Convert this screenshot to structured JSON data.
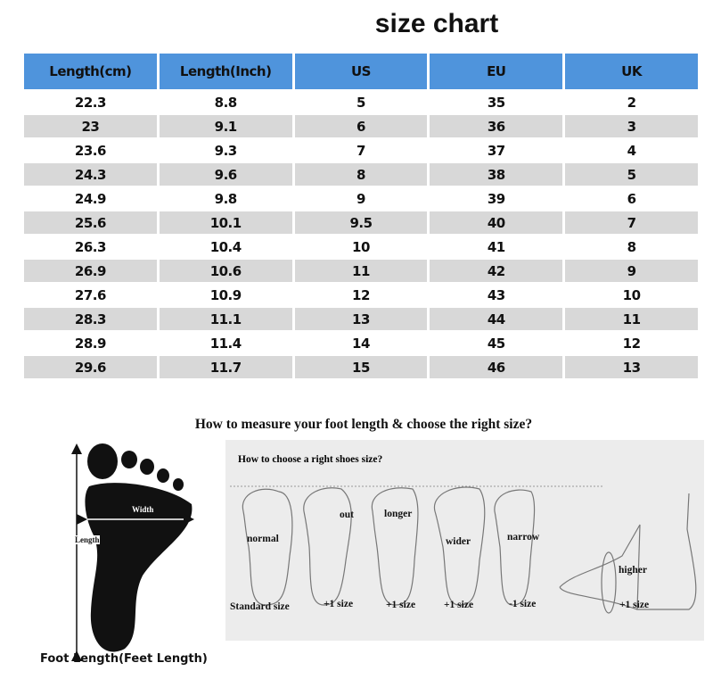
{
  "title": "size chart",
  "table": {
    "headers": [
      "Length(cm)",
      "Length(Inch)",
      "US",
      "EU",
      "UK"
    ],
    "header_color": "#4f94dc",
    "rows": [
      [
        "22.3",
        "8.8",
        "5",
        "35",
        "2"
      ],
      [
        "23",
        "9.1",
        "6",
        "36",
        "3"
      ],
      [
        "23.6",
        "9.3",
        "7",
        "37",
        "4"
      ],
      [
        "24.3",
        "9.6",
        "8",
        "38",
        "5"
      ],
      [
        "24.9",
        "9.8",
        "9",
        "39",
        "6"
      ],
      [
        "25.6",
        "10.1",
        "9.5",
        "40",
        "7"
      ],
      [
        "26.3",
        "10.4",
        "10",
        "41",
        "8"
      ],
      [
        "26.9",
        "10.6",
        "11",
        "42",
        "9"
      ],
      [
        "27.6",
        "10.9",
        "12",
        "43",
        "10"
      ],
      [
        "28.3",
        "11.1",
        "13",
        "44",
        "11"
      ],
      [
        "28.9",
        "11.4",
        "14",
        "45",
        "12"
      ],
      [
        "29.6",
        "11.7",
        "15",
        "46",
        "13"
      ]
    ]
  },
  "measure": {
    "heading": "How to measure your foot length & choose the right size?",
    "foot_width_label": "Width",
    "foot_length_label": "Length",
    "foot_caption": "Foot Length(Feet Length)"
  },
  "choose": {
    "heading": "How to choose a right shoes size?",
    "feet": [
      {
        "label": "normal",
        "size": "Standard size"
      },
      {
        "label": "out",
        "size": "+1 size"
      },
      {
        "label": "longer",
        "size": "+1 size"
      },
      {
        "label": "wider",
        "size": "+1 size"
      },
      {
        "label": "narrow",
        "size": "-1 size"
      },
      {
        "label": "higher",
        "size": "+1 size"
      }
    ]
  }
}
